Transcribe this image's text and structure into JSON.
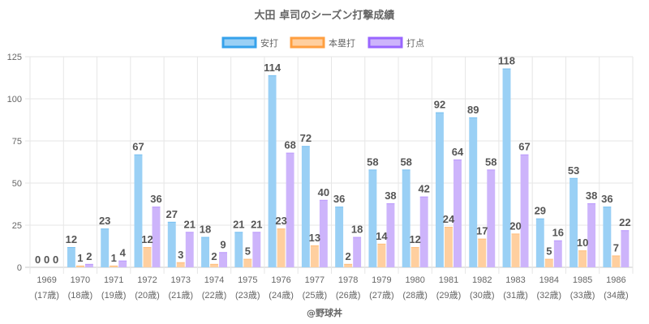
{
  "chart_data": {
    "type": "bar",
    "title": "大田 卓司のシーズン打撃成績",
    "categories": [
      "1969",
      "1970",
      "1971",
      "1972",
      "1973",
      "1974",
      "1975",
      "1976",
      "1977",
      "1978",
      "1979",
      "1980",
      "1981",
      "1982",
      "1983",
      "1984",
      "1985",
      "1986"
    ],
    "category_sublabels": [
      "(17歳)",
      "(18歳)",
      "(19歳)",
      "(20歳)",
      "(21歳)",
      "(22歳)",
      "(23歳)",
      "(24歳)",
      "(25歳)",
      "(26歳)",
      "(27歳)",
      "(28歳)",
      "(29歳)",
      "(30歳)",
      "(31歳)",
      "(32歳)",
      "(33歳)",
      "(34歳)"
    ],
    "series": [
      {
        "name": "安打",
        "color": "#9ad0f5",
        "border": "#36a2eb",
        "values": [
          0,
          12,
          23,
          67,
          27,
          18,
          21,
          114,
          72,
          36,
          58,
          58,
          92,
          89,
          118,
          29,
          53,
          36
        ]
      },
      {
        "name": "本塁打",
        "color": "#ffcf9f",
        "border": "#ff9f40",
        "values": [
          0,
          1,
          1,
          12,
          3,
          2,
          5,
          23,
          13,
          2,
          14,
          12,
          24,
          17,
          20,
          5,
          10,
          7
        ]
      },
      {
        "name": "打点",
        "color": "#cdb4fb",
        "border": "#9966ff",
        "values": [
          0,
          2,
          4,
          36,
          21,
          9,
          21,
          68,
          40,
          18,
          38,
          42,
          64,
          58,
          67,
          16,
          38,
          22
        ]
      }
    ],
    "xlabel": "",
    "ylabel": "",
    "ylim": [
      0,
      125
    ],
    "yticks": [
      0,
      25,
      50,
      75,
      100,
      125
    ],
    "grid": true,
    "legend": "top-center",
    "data_labels": true
  },
  "credit": "@野球丼"
}
